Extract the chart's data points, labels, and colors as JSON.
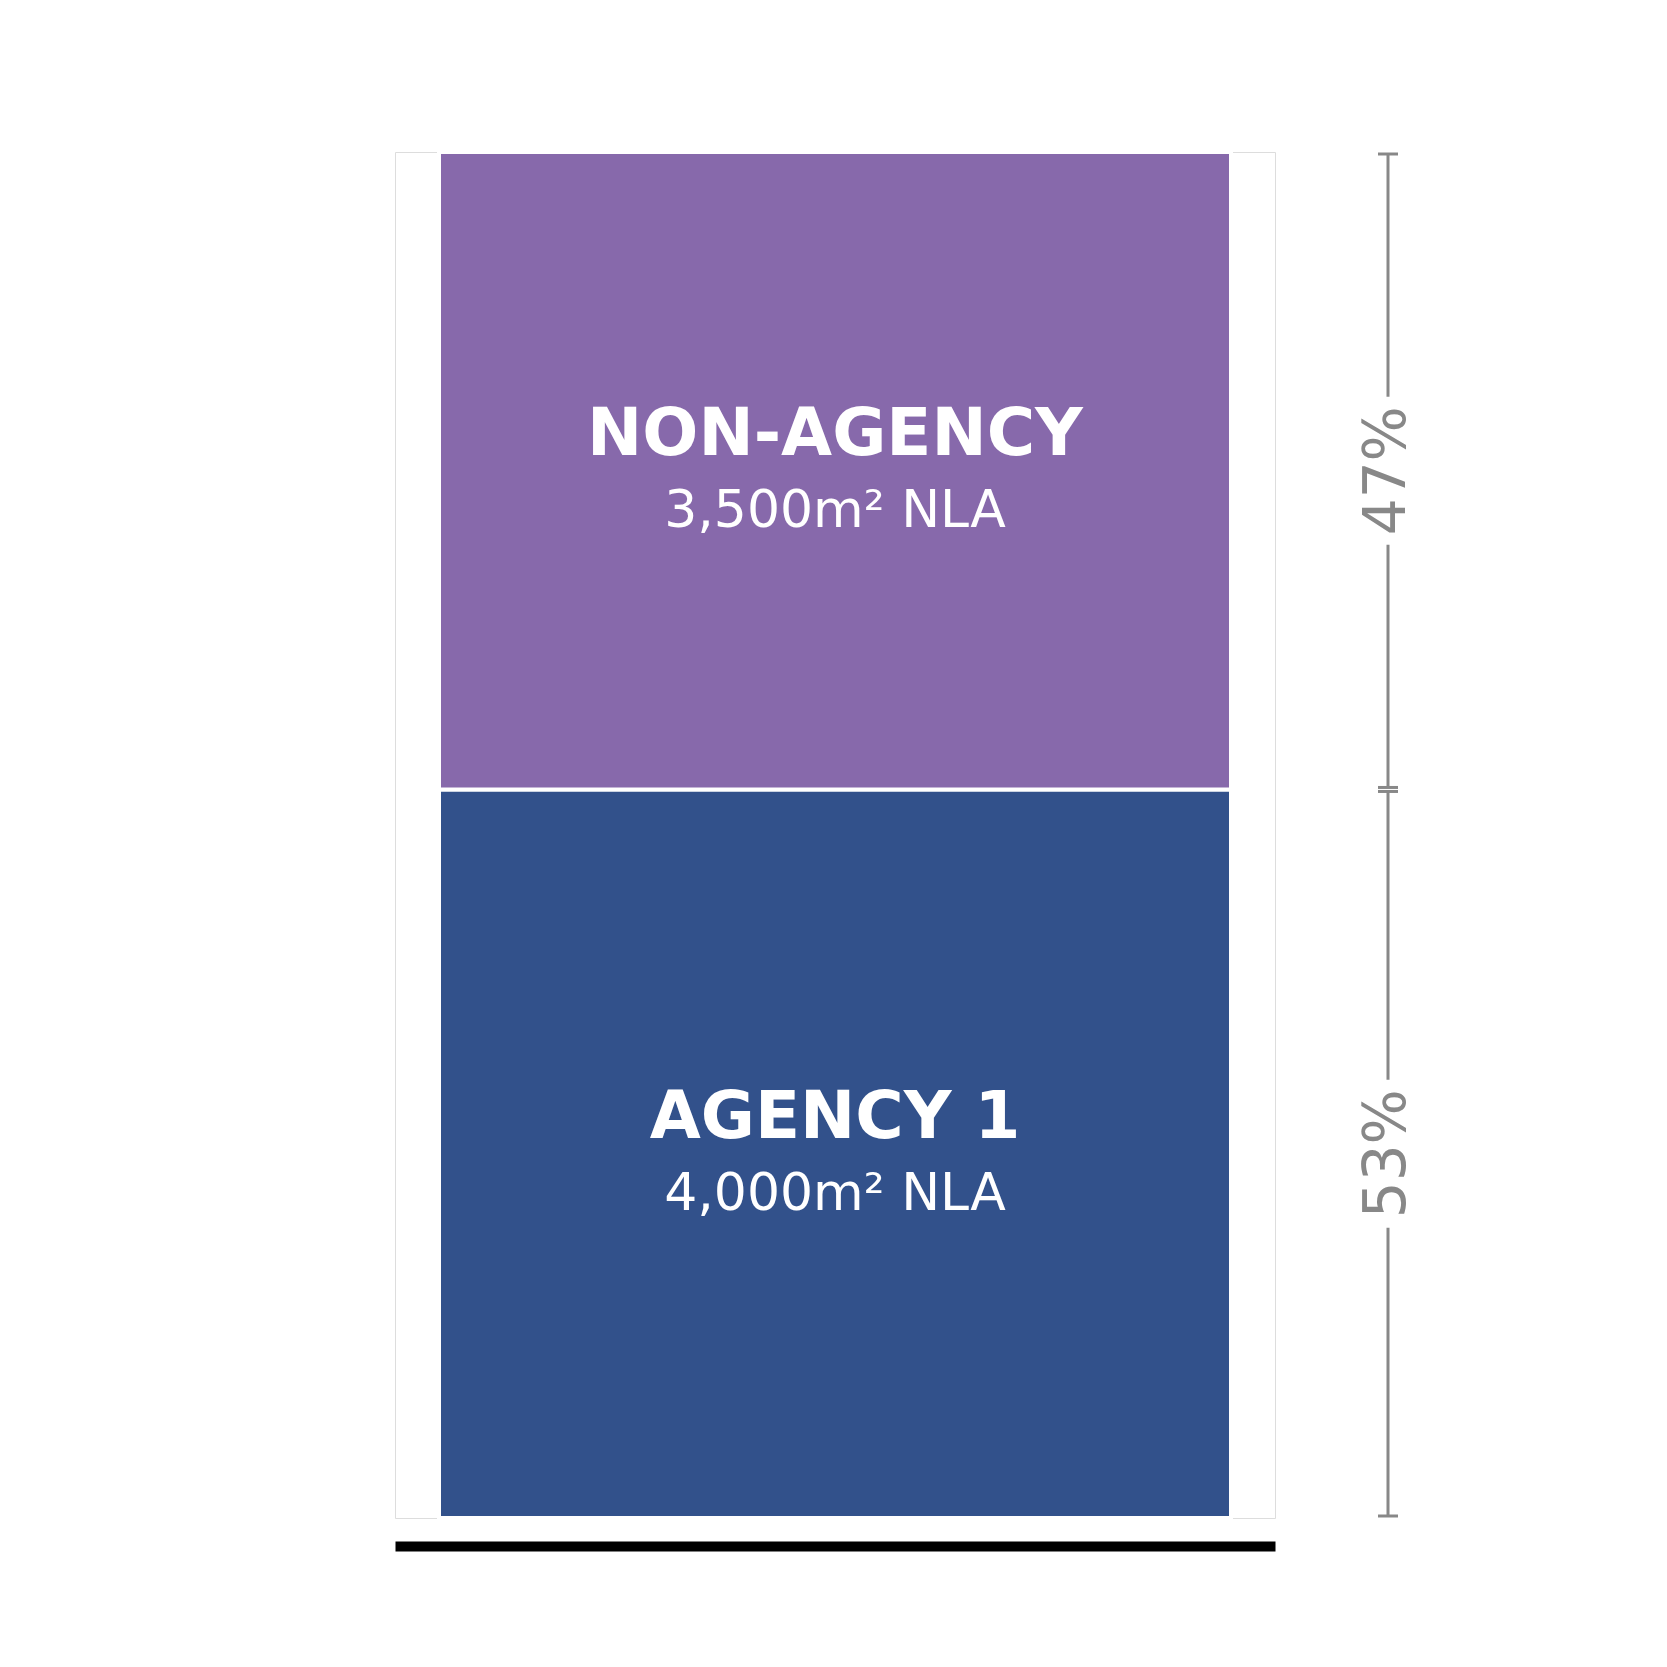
{
  "chart_data": {
    "type": "bar",
    "stacked": true,
    "tick_labels": false,
    "categories": [
      null
    ],
    "series": [
      {
        "name": "AGENCY 1",
        "color": "#32518b",
        "values": [
          4000
        ],
        "value_labels": [
          "4,000m² NLA"
        ]
      },
      {
        "name": "NON-AGENCY",
        "color": "#8769ab",
        "values": [
          3500
        ],
        "value_labels": [
          "3,500m² NLA"
        ]
      }
    ],
    "annotations": [
      "53%",
      "47%"
    ]
  }
}
